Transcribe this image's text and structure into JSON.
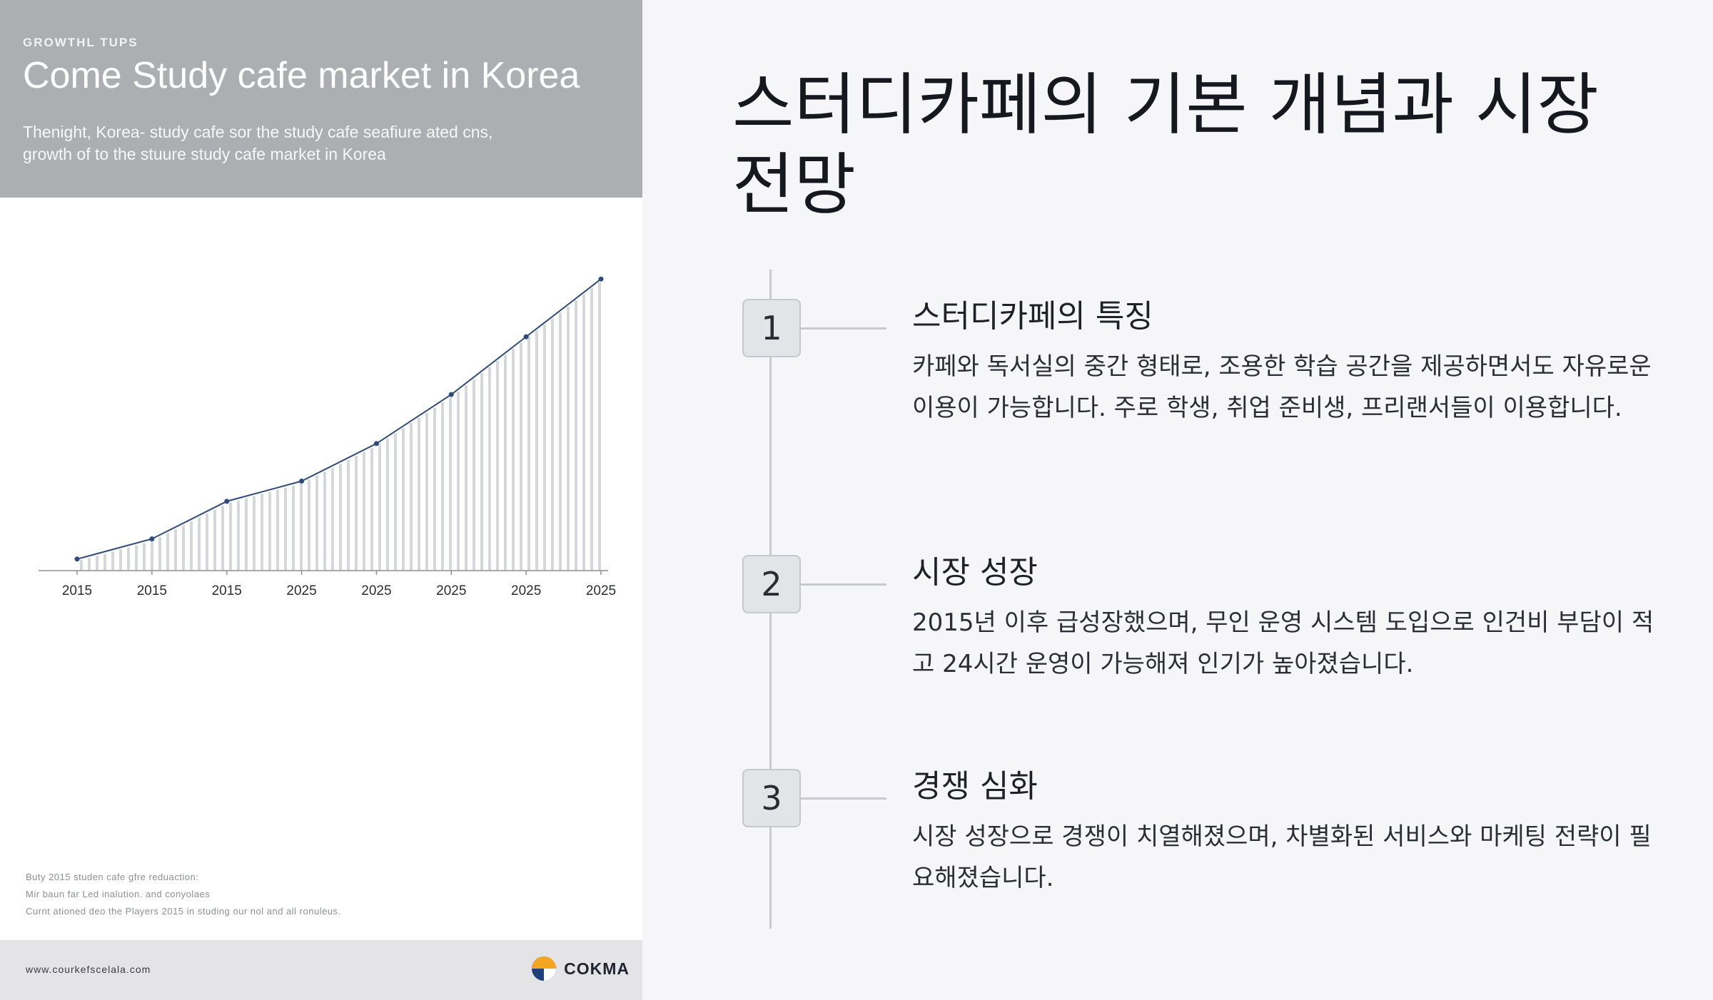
{
  "left_panel": {
    "eyebrow": "GROWTHL TUPS",
    "title": "Come Study cafe market in Korea",
    "subtitle_line1": "Thenight, Korea- study cafe sor the study cafe seafiure ated cns,",
    "subtitle_line2": "growth of to the stuure study cafe market in Korea",
    "notes": [
      "Buty 2015 studen cafe gfre reduaction:",
      "Mir baun far Led inalution. and conyolaes",
      "Curnt ationed deo the Players 2015 in studing our nol and all ronuleus."
    ],
    "footer_url": "www.courkefscelala.com",
    "logo_text": "COKMA",
    "logo_colors": [
      "#f2a623",
      "#1e3f7a"
    ]
  },
  "chart_data": {
    "type": "line",
    "categories": [
      "2015",
      "2015",
      "2015",
      "2025",
      "2025",
      "2025",
      "2025",
      "2025"
    ],
    "values": [
      4,
      11,
      24,
      31,
      44,
      61,
      81,
      101
    ],
    "title": "",
    "xlabel": "",
    "ylabel": "",
    "ylim": [
      0,
      105
    ],
    "grid": false,
    "line_color": "#2e4a7a",
    "fill_stripe_color": "#d6d7da"
  },
  "main": {
    "title": "스터디카페의 기본 개념과 시장 전망",
    "steps": [
      {
        "number": "1",
        "title": "스터디카페의 특징",
        "body": "카페와 독서실의 중간 형태로, 조용한 학습 공간을 제공하면서도 자유로운 이용이 가능합니다. 주로 학생, 취업 준비생, 프리랜서들이 이용합니다."
      },
      {
        "number": "2",
        "title": "시장 성장",
        "body": "2015년 이후 급성장했으며, 무인 운영 시스템 도입으로 인건비 부담이 적고 24시간 운영이 가능해져 인기가 높아졌습니다."
      },
      {
        "number": "3",
        "title": "경쟁 심화",
        "body": "시장 성장으로 경쟁이 치열해졌으며, 차별화된 서비스와 마케팅 전략이 필요해졌습니다."
      }
    ]
  }
}
